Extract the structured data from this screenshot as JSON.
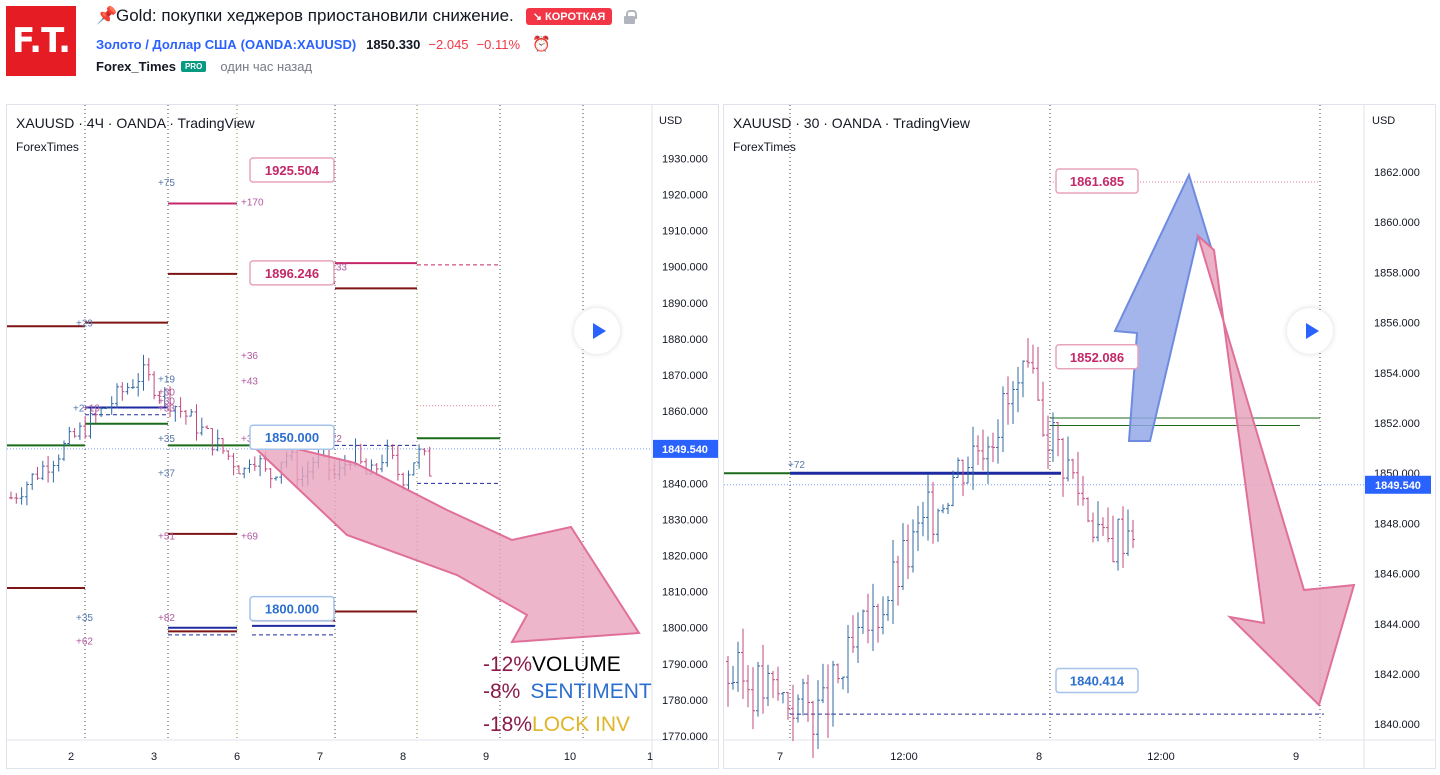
{
  "header": {
    "logo": "F.T.",
    "pin_icon": "pushpin-icon",
    "title": "Gold: покупки хеджеров приостановили снижение.",
    "badge": "↘ КОРОТКАЯ",
    "symbol_name": "Золото / Доллар США",
    "symbol_ticker": "(OANDA:XAUUSD)",
    "price": "1850.330",
    "change": "−2.045",
    "change_pct": "−0.11%",
    "author": "Forex_Times",
    "pro_badge": "PRO",
    "time_ago": "один час назад"
  },
  "colors": {
    "brand": "#e51c24",
    "short_badge": "#f23645",
    "blue": "#2962ff",
    "up": "#2f68a3",
    "down": "#c2497c",
    "arrow_fill": "#e8a4bd",
    "arrow_up_fill": "#93a8e6"
  },
  "chart1": {
    "title": "XAUUSD · 4Ч · OANDA · TradingView",
    "subtitle": "ForexTimes",
    "currency": "USD",
    "price_ticks": [
      "1930.000",
      "1920.000",
      "1910.000",
      "1900.000",
      "1890.000",
      "1880.000",
      "1870.000",
      "1860.000",
      "1850.000",
      "1840.000",
      "1830.000",
      "1820.000",
      "1810.000",
      "1800.000",
      "1790.000",
      "1780.000",
      "1770.000"
    ],
    "date_ticks": [
      "2",
      "3",
      "6",
      "7",
      "8",
      "9",
      "10",
      "1"
    ],
    "last_price": "1849.540",
    "callouts": [
      "1925.504",
      "1896.246",
      "1850.000",
      "1800.000"
    ],
    "level_labels": [
      "+75",
      "+170",
      "+33",
      "+29",
      "+36",
      "+43",
      "+19",
      "+30",
      "+30",
      "+2",
      "+19",
      "+33",
      "+35",
      "+35",
      "+72",
      "+37",
      "+51",
      "+69",
      "+35",
      "+82",
      "+62"
    ],
    "annotations": [
      {
        "pct": "-12%",
        "word": "VOLUME",
        "pct_color": "#8b1a4a",
        "word_color": "#000000"
      },
      {
        "pct": "-8%",
        "word": "SENTIMENT",
        "pct_color": "#8b1a4a",
        "word_color": "#2d6fcf"
      },
      {
        "pct": "-18%",
        "word": "LOCK INV",
        "pct_color": "#8b1a4a",
        "word_color": "#e0b52a"
      }
    ]
  },
  "chart2": {
    "title": "XAUUSD · 30 · OANDA · TradingView",
    "subtitle": "ForexTimes",
    "currency": "USD",
    "price_ticks": [
      "1862.000",
      "1860.000",
      "1858.000",
      "1856.000",
      "1854.000",
      "1852.000",
      "1850.000",
      "1848.000",
      "1846.000",
      "1844.000",
      "1842.000",
      "1840.000"
    ],
    "date_ticks": [
      "7",
      "12:00",
      "8",
      "12:00",
      "9"
    ],
    "last_price": "1849.540",
    "callouts": [
      "1861.685",
      "1852.086",
      "1840.414"
    ],
    "level_labels": [
      "+72"
    ]
  }
}
